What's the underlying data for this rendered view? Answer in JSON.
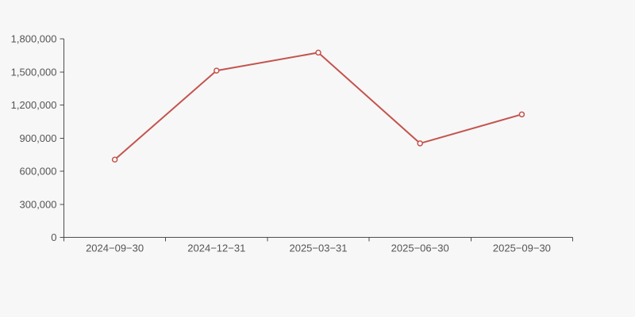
{
  "colors": {
    "background": "#f7f7f7",
    "axis": "#4d4d4d",
    "label": "#555555",
    "line": "#c4544e",
    "marker_fill": "#ffffff"
  },
  "chart_data": {
    "type": "line",
    "title": "",
    "xlabel": "",
    "ylabel": "",
    "legend_position": "none",
    "grid": false,
    "marker_style": "open-circle",
    "categories": [
      "2024−09−30",
      "2024−12−31",
      "2025−03−31",
      "2025−06−30",
      "2025−09−30"
    ],
    "series": [
      {
        "name": "value",
        "values": [
          705000,
          1512000,
          1675000,
          852000,
          1115000
        ]
      }
    ],
    "ylim": [
      0,
      1800000
    ],
    "y_ticks": [
      {
        "value": 0,
        "label": "0"
      },
      {
        "value": 300000,
        "label": "300,000"
      },
      {
        "value": 600000,
        "label": "600,000"
      },
      {
        "value": 900000,
        "label": "900,000"
      },
      {
        "value": 1200000,
        "label": "1,200,000"
      },
      {
        "value": 1500000,
        "label": "1,500,000"
      },
      {
        "value": 1800000,
        "label": "1,800,000"
      }
    ]
  }
}
